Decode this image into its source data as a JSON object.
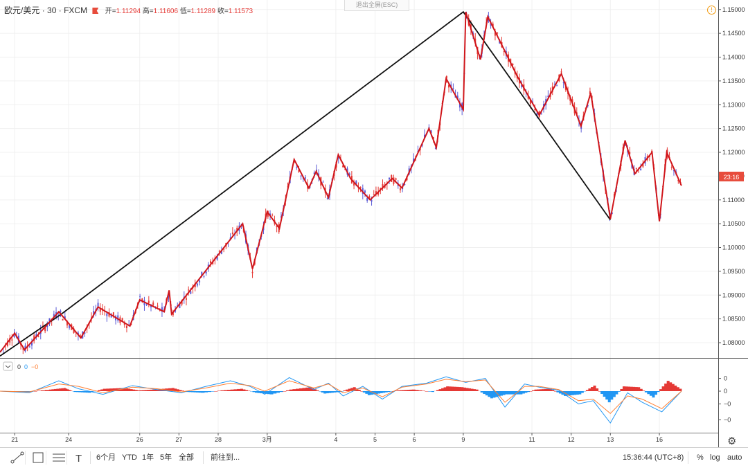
{
  "header": {
    "symbol": "欧元/美元",
    "separator": "·",
    "interval": "30",
    "exchange": "FXCM",
    "open_label": "开=",
    "open": "1.11294",
    "high_label": " 高=",
    "high": "1.11606",
    "low_label": " 低=",
    "low": "1.11289",
    "close_label": " 收=",
    "close": "1.11573"
  },
  "exit_fullscreen": "退出全屏(ESC)",
  "price_label": "23:16",
  "macd_legend": [
    "0",
    "0",
    "−0"
  ],
  "toolbar": {
    "ranges": [
      "6个月",
      "YTD",
      "1年",
      "5年",
      "全部"
    ],
    "goto": "前往到...",
    "clock": "15:36:44 (UTC+8)",
    "percent": "%",
    "log": "log",
    "auto": "auto"
  },
  "colors": {
    "up": "#5b5bd6",
    "down": "#e53935",
    "zigzag": "#d0161b",
    "big_trend": "#111111",
    "macd_line": "#2196f3",
    "signal_line": "#ff7f32",
    "hist_pos": "#e53935",
    "hist_neg": "#2196f3",
    "grid": "#f0f0f0"
  },
  "chart_data": [
    {
      "type": "line",
      "title": "",
      "y_ticks": [
        "1.15000",
        "1.14500",
        "1.14000",
        "1.13500",
        "1.13000",
        "1.12500",
        "1.12000",
        "1.11500",
        "1.11000",
        "1.10500",
        "1.10000",
        "1.09500",
        "1.09000",
        "1.08500",
        "1.08000"
      ],
      "ylim": [
        1.0768,
        1.152
      ],
      "x_ticks": [
        {
          "label": "21",
          "t": 0.3
        },
        {
          "label": "24",
          "t": 1.4
        },
        {
          "label": "26",
          "t": 2.85
        },
        {
          "label": "27",
          "t": 3.65
        },
        {
          "label": "28",
          "t": 4.45
        },
        {
          "label": "3月",
          "t": 5.45
        },
        {
          "label": "4",
          "t": 6.85
        },
        {
          "label": "5",
          "t": 7.65
        },
        {
          "label": "6",
          "t": 8.45
        },
        {
          "label": "9",
          "t": 9.45
        },
        {
          "label": "11",
          "t": 10.85
        },
        {
          "label": "12",
          "t": 11.65
        },
        {
          "label": "13",
          "t": 12.45
        },
        {
          "label": "16",
          "t": 13.45
        }
      ],
      "xlim": [
        0,
        14.65
      ],
      "series": [
        {
          "role": "zigzag",
          "x": [
            0,
            0.3,
            0.5,
            1.2,
            1.65,
            2.0,
            2.65,
            2.85,
            3.35,
            3.45,
            3.5,
            4.95,
            5.15,
            5.45,
            5.7,
            6.0,
            6.3,
            6.45,
            6.7,
            6.9,
            7.15,
            7.55,
            8.0,
            8.2,
            8.75,
            8.9,
            9.1,
            9.45,
            9.5,
            9.8,
            9.95,
            10.55,
            11.0,
            11.45,
            11.85,
            12.05,
            12.45,
            12.75,
            12.95,
            13.3,
            13.45,
            13.6,
            13.9
          ],
          "y": [
            1.078,
            1.082,
            1.0785,
            1.0865,
            1.081,
            1.0875,
            1.0835,
            1.089,
            1.0865,
            1.091,
            1.086,
            1.105,
            1.0955,
            1.1075,
            1.104,
            1.1185,
            1.1125,
            1.116,
            1.1105,
            1.1195,
            1.1145,
            1.11,
            1.1145,
            1.1125,
            1.125,
            1.121,
            1.1355,
            1.129,
            1.1495,
            1.1395,
            1.1485,
            1.136,
            1.1278,
            1.1365,
            1.1255,
            1.1325,
            1.106,
            1.1225,
            1.1155,
            1.12,
            1.1055,
            1.12,
            1.113
          ]
        },
        {
          "role": "trend",
          "x": [
            0,
            1.25,
            9.45,
            12.45
          ],
          "y": [
            1.0772,
            1.086,
            1.1495,
            1.1058
          ]
        }
      ]
    },
    {
      "type": "area",
      "title": "MACD",
      "y_ticks": [
        "0",
        "0",
        "−0",
        "−0"
      ],
      "xlim": [
        0,
        14.65
      ],
      "ylim": [
        -1,
        1
      ],
      "series": [
        {
          "name": "histogram",
          "x": [
            0.0,
            0.5,
            1.0,
            1.3,
            1.5,
            1.8,
            2.1,
            2.5,
            2.8,
            3.1,
            3.5,
            3.8,
            4.1,
            4.5,
            4.9,
            5.2,
            5.5,
            5.9,
            6.3,
            6.6,
            6.9,
            7.2,
            7.5,
            7.8,
            8.1,
            8.4,
            8.8,
            9.1,
            9.4,
            9.7,
            10.0,
            10.3,
            10.6,
            10.9,
            11.2,
            11.5,
            11.8,
            12.1,
            12.4,
            12.7,
            13.0,
            13.3,
            13.6,
            13.9
          ],
          "y": [
            0.0,
            -0.05,
            0.1,
            0.2,
            -0.05,
            -0.1,
            0.15,
            0.2,
            0.05,
            0.1,
            0.2,
            -0.05,
            -0.1,
            0.05,
            0.15,
            -0.1,
            -0.2,
            0.1,
            0.25,
            -0.15,
            -0.05,
            0.25,
            -0.25,
            -0.1,
            0.05,
            0.1,
            -0.05,
            0.3,
            0.25,
            0.1,
            -0.45,
            -0.2,
            -0.2,
            0.1,
            0.15,
            -0.3,
            -0.2,
            0.35,
            -0.7,
            0.3,
            0.25,
            -0.4,
            0.65,
            0.05
          ]
        },
        {
          "name": "macd",
          "x": [
            0.0,
            0.6,
            1.2,
            1.6,
            2.1,
            2.7,
            3.2,
            3.7,
            4.2,
            4.7,
            5.1,
            5.4,
            5.9,
            6.4,
            6.7,
            7.0,
            7.4,
            7.8,
            8.2,
            8.7,
            9.1,
            9.5,
            9.9,
            10.3,
            10.7,
            11.0,
            11.4,
            11.8,
            12.1,
            12.45,
            12.8,
            13.1,
            13.5,
            13.9
          ],
          "y": [
            0.0,
            -0.1,
            0.65,
            0.15,
            -0.2,
            0.35,
            0.1,
            -0.1,
            0.3,
            0.65,
            0.3,
            -0.2,
            0.85,
            0.1,
            0.5,
            -0.3,
            0.3,
            -0.5,
            0.3,
            0.5,
            0.9,
            0.55,
            0.8,
            -1.0,
            0.45,
            0.25,
            0.05,
            -0.8,
            -0.6,
            -2.0,
            -0.1,
            -0.7,
            -1.3,
            0.0
          ]
        },
        {
          "name": "signal",
          "x": [
            0.0,
            0.6,
            1.2,
            1.6,
            2.1,
            2.7,
            3.2,
            3.7,
            4.2,
            4.7,
            5.1,
            5.4,
            5.9,
            6.4,
            6.7,
            7.0,
            7.4,
            7.8,
            8.2,
            8.7,
            9.1,
            9.5,
            9.9,
            10.3,
            10.7,
            11.0,
            11.4,
            11.8,
            12.1,
            12.45,
            12.8,
            13.1,
            13.5,
            13.9
          ],
          "y": [
            0.0,
            -0.05,
            0.45,
            0.3,
            -0.1,
            0.25,
            0.15,
            -0.05,
            0.2,
            0.5,
            0.35,
            0.0,
            0.65,
            0.2,
            0.45,
            -0.1,
            0.2,
            -0.35,
            0.25,
            0.45,
            0.75,
            0.6,
            0.7,
            -0.7,
            0.3,
            0.3,
            0.1,
            -0.6,
            -0.5,
            -1.4,
            -0.3,
            -0.5,
            -1.1,
            0.0
          ]
        }
      ]
    }
  ]
}
